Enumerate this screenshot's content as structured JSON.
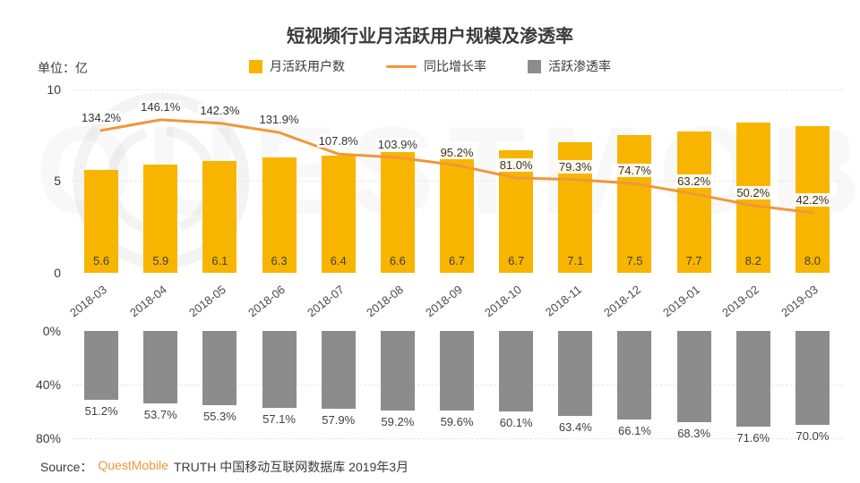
{
  "title": "短视频行业月活跃用户规模及渗透率",
  "unit_label": "单位：亿",
  "watermark_text": "QUESTMOBILE",
  "legend": [
    {
      "label": "月活跃用户数",
      "color": "#F8B500"
    },
    {
      "label": "同比增长率",
      "color": "#F0973B"
    },
    {
      "label": "活跃渗透率",
      "color": "#8C8C8C"
    }
  ],
  "source": {
    "prefix": "Source：",
    "brand": "QuestMobile",
    "suffix": "TRUTH 中国移动互联网数据库 2019年3月"
  },
  "chart_data": [
    {
      "type": "bar",
      "name": "月活跃用户数",
      "unit": "亿",
      "categories": [
        "2018-03",
        "2018-04",
        "2018-05",
        "2018-06",
        "2018-07",
        "2018-08",
        "2018-09",
        "2018-10",
        "2018-11",
        "2018-12",
        "2019-01",
        "2019-02",
        "2019-03"
      ],
      "values": [
        5.6,
        5.9,
        6.1,
        6.3,
        6.4,
        6.6,
        6.7,
        6.7,
        7.1,
        7.5,
        7.7,
        8.2,
        8.0
      ],
      "ylim": [
        0,
        10
      ],
      "yticks": [
        "10",
        "5",
        "0"
      ],
      "color": "#F8B500",
      "grid": "dashed",
      "legend_position": "top-center"
    },
    {
      "type": "line",
      "name": "同比增长率",
      "unit": "%",
      "categories": [
        "2018-03",
        "2018-04",
        "2018-05",
        "2018-06",
        "2018-07",
        "2018-08",
        "2018-09",
        "2018-10",
        "2018-11",
        "2018-12",
        "2019-01",
        "2019-02",
        "2019-03"
      ],
      "values": [
        134.2,
        146.1,
        142.3,
        131.9,
        107.8,
        103.9,
        95.2,
        81.0,
        79.3,
        74.7,
        63.2,
        50.2,
        42.2
      ],
      "color": "#F0973B"
    },
    {
      "type": "bar",
      "name": "活跃渗透率",
      "unit": "%",
      "inverted": true,
      "categories": [
        "2018-03",
        "2018-04",
        "2018-05",
        "2018-06",
        "2018-07",
        "2018-08",
        "2018-09",
        "2018-10",
        "2018-11",
        "2018-12",
        "2019-01",
        "2019-02",
        "2019-03"
      ],
      "values": [
        51.2,
        53.7,
        55.3,
        57.1,
        57.9,
        59.2,
        59.6,
        60.1,
        63.4,
        66.1,
        68.3,
        71.6,
        70.0
      ],
      "ylim": [
        0,
        80
      ],
      "yticks": [
        "0%",
        "40%",
        "80%"
      ],
      "color": "#8C8C8C"
    }
  ]
}
